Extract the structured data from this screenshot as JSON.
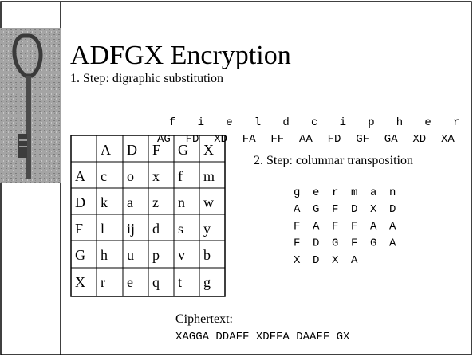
{
  "title": "ADFGX Encryption",
  "step1": "1. Step: digraphic substitution",
  "plaintext": [
    "f",
    "i",
    "e",
    "l",
    "d",
    "c",
    "i",
    "p",
    "h",
    "e",
    "r"
  ],
  "digraphs": [
    "AG",
    "FD",
    "XD",
    "FA",
    "FF",
    "AA",
    "FD",
    "GF",
    "GA",
    "XD",
    "XA"
  ],
  "table": {
    "header": [
      "A",
      "D",
      "F",
      "G",
      "X"
    ],
    "rows": [
      [
        "A",
        "c",
        "o",
        "x",
        "f",
        "m"
      ],
      [
        "D",
        "k",
        "a",
        "z",
        "n",
        "w"
      ],
      [
        "F",
        "l",
        "ij",
        "d",
        "s",
        "y"
      ],
      [
        "G",
        "h",
        "u",
        "p",
        "v",
        "b"
      ],
      [
        "X",
        "r",
        "e",
        "q",
        "t",
        "g"
      ]
    ]
  },
  "step2": "2. Step: columnar transposition",
  "keyword": [
    "g",
    "e",
    "r",
    "m",
    "a",
    "n"
  ],
  "transposition": [
    [
      "A",
      "G",
      "F",
      "D",
      "X",
      "D"
    ],
    [
      "F",
      "A",
      "F",
      "F",
      "A",
      "A"
    ],
    [
      "F",
      "D",
      "G",
      "F",
      "G",
      "A"
    ],
    [
      "X",
      "D",
      "X",
      "A"
    ]
  ],
  "ciphertext_label": "Ciphertext:",
  "ciphertext": "XAGGA DDAFF XDFFA DAAFF GX"
}
